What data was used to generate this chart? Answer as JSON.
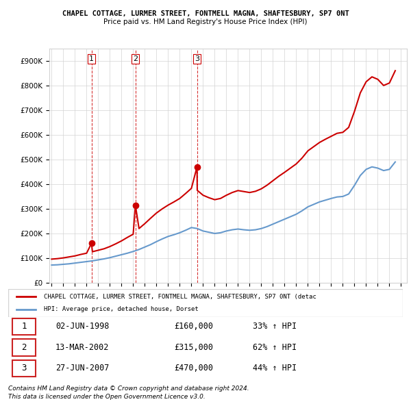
{
  "title1": "CHAPEL COTTAGE, LURMER STREET, FONTMELL MAGNA, SHAFTESBURY, SP7 0NT",
  "title2": "Price paid vs. HM Land Registry's House Price Index (HPI)",
  "legend_label1": "CHAPEL COTTAGE, LURMER STREET, FONTMELL MAGNA, SHAFTESBURY, SP7 0NT (detac",
  "legend_label2": "HPI: Average price, detached house, Dorset",
  "footer1": "Contains HM Land Registry data © Crown copyright and database right 2024.",
  "footer2": "This data is licensed under the Open Government Licence v3.0.",
  "sales": [
    {
      "num": 1,
      "date": "02-JUN-1998",
      "year": 1998.42,
      "price": 160000,
      "pct": "33% ↑ HPI"
    },
    {
      "num": 2,
      "date": "13-MAR-2002",
      "year": 2002.19,
      "price": 315000,
      "pct": "62% ↑ HPI"
    },
    {
      "num": 3,
      "date": "27-JUN-2007",
      "year": 2007.48,
      "price": 470000,
      "pct": "44% ↑ HPI"
    }
  ],
  "hpi_color": "#6699cc",
  "sale_color": "#cc0000",
  "dashed_line_color": "#cc0000",
  "ylim": [
    0,
    950000
  ],
  "yticks": [
    0,
    100000,
    200000,
    300000,
    400000,
    500000,
    600000,
    700000,
    800000,
    900000
  ],
  "hpi_data_x": [
    1995,
    1995.5,
    1996,
    1996.5,
    1997,
    1997.5,
    1998,
    1998.5,
    1999,
    1999.5,
    2000,
    2000.5,
    2001,
    2001.5,
    2002,
    2002.5,
    2003,
    2003.5,
    2004,
    2004.5,
    2005,
    2005.5,
    2006,
    2006.5,
    2007,
    2007.5,
    2008,
    2008.5,
    2009,
    2009.5,
    2010,
    2010.5,
    2011,
    2011.5,
    2012,
    2012.5,
    2013,
    2013.5,
    2014,
    2014.5,
    2015,
    2015.5,
    2016,
    2016.5,
    2017,
    2017.5,
    2018,
    2018.5,
    2019,
    2019.5,
    2020,
    2020.5,
    2021,
    2021.5,
    2022,
    2022.5,
    2023,
    2023.5,
    2024,
    2024.5
  ],
  "hpi_data_y": [
    72000,
    73000,
    75000,
    77000,
    80000,
    83000,
    86000,
    89000,
    93000,
    97000,
    102000,
    108000,
    114000,
    120000,
    127000,
    135000,
    145000,
    155000,
    167000,
    178000,
    188000,
    195000,
    203000,
    213000,
    224000,
    220000,
    210000,
    205000,
    200000,
    203000,
    210000,
    215000,
    218000,
    215000,
    213000,
    215000,
    220000,
    228000,
    238000,
    248000,
    258000,
    268000,
    278000,
    292000,
    308000,
    318000,
    328000,
    335000,
    342000,
    348000,
    350000,
    360000,
    395000,
    435000,
    460000,
    470000,
    465000,
    455000,
    460000,
    490000
  ],
  "sale_line_x": [
    1995,
    1995.5,
    1996,
    1996.5,
    1997,
    1997.5,
    1998,
    1998.42,
    1998.5,
    1999,
    1999.5,
    2000,
    2000.5,
    2001,
    2001.5,
    2002,
    2002.19,
    2002.5,
    2003,
    2003.5,
    2004,
    2004.5,
    2005,
    2005.5,
    2006,
    2006.5,
    2007,
    2007.48,
    2007.5,
    2008,
    2008.5,
    2009,
    2009.5,
    2010,
    2010.5,
    2011,
    2011.5,
    2012,
    2012.5,
    2013,
    2013.5,
    2014,
    2014.5,
    2015,
    2015.5,
    2016,
    2016.5,
    2017,
    2017.5,
    2018,
    2018.5,
    2019,
    2019.5,
    2020,
    2020.5,
    2021,
    2021.5,
    2022,
    2022.5,
    2023,
    2023.5,
    2024,
    2024.5
  ],
  "sale_line_y": [
    96000,
    98000,
    101000,
    105000,
    109000,
    115000,
    120000,
    160000,
    126000,
    132000,
    138000,
    147000,
    158000,
    170000,
    184000,
    197000,
    315000,
    220000,
    240000,
    262000,
    283000,
    300000,
    315000,
    328000,
    342000,
    362000,
    383000,
    470000,
    375000,
    355000,
    345000,
    337000,
    342000,
    355000,
    366000,
    374000,
    370000,
    366000,
    371000,
    381000,
    396000,
    414000,
    432000,
    448000,
    465000,
    482000,
    506000,
    535000,
    552000,
    569000,
    582000,
    594000,
    606000,
    610000,
    630000,
    695000,
    770000,
    815000,
    835000,
    825000,
    800000,
    810000,
    860000
  ]
}
